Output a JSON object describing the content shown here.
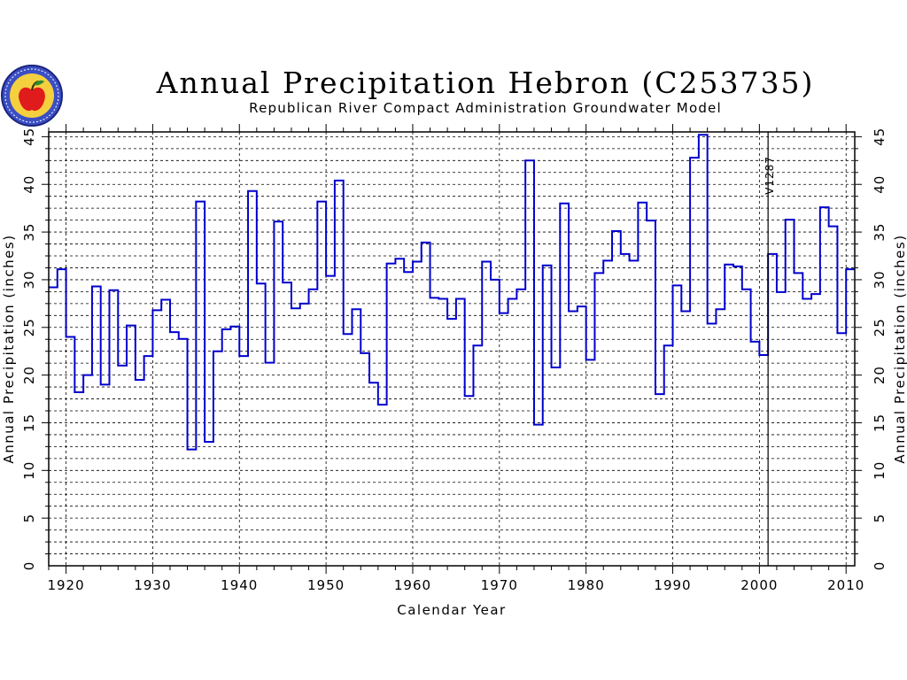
{
  "chart_data": {
    "type": "line",
    "style": "step",
    "title": "Annual Precipitation Hebron (C253735)",
    "subtitle": "Republican River Compact Administration Groundwater Model",
    "xlabel": "Calendar Year",
    "ylabel_left": "Annual Precipitation (inches)",
    "ylabel_right": "Annual Precipitation (inches)",
    "xlim": [
      1918,
      2011
    ],
    "ylim": [
      0,
      45.5
    ],
    "x_ticks": [
      1920,
      1930,
      1940,
      1950,
      1960,
      1970,
      1980,
      1990,
      2000,
      2010
    ],
    "y_ticks": [
      0,
      5,
      10,
      15,
      20,
      25,
      30,
      35,
      40,
      45
    ],
    "grid": true,
    "marker_line": {
      "year": 2001,
      "label": "V1287"
    },
    "series": [
      {
        "color": "#0000cc",
        "x": [
          1918,
          1919,
          1920,
          1921,
          1922,
          1923,
          1924,
          1925,
          1926,
          1927,
          1928,
          1929,
          1930,
          1931,
          1932,
          1933,
          1934,
          1935,
          1936,
          1937,
          1938,
          1939,
          1940,
          1941,
          1942,
          1943,
          1944,
          1945,
          1946,
          1947,
          1948,
          1949,
          1950,
          1951,
          1952,
          1953,
          1954,
          1955,
          1956,
          1957,
          1958,
          1959,
          1960,
          1961,
          1962,
          1963,
          1964,
          1965,
          1966,
          1967,
          1968,
          1969,
          1970,
          1971,
          1972,
          1973,
          1974,
          1975,
          1976,
          1977,
          1978,
          1979,
          1980,
          1981,
          1982,
          1983,
          1984,
          1985,
          1986,
          1987,
          1988,
          1989,
          1990,
          1991,
          1992,
          1993,
          1994,
          1995,
          1996,
          1997,
          1998,
          1999,
          2000,
          2001,
          2002,
          2003,
          2004,
          2005,
          2006,
          2007,
          2008,
          2009,
          2010
        ],
        "values": [
          29.2,
          31.1,
          24.0,
          18.2,
          20.0,
          29.3,
          19.0,
          28.9,
          21.0,
          25.2,
          19.5,
          22.0,
          26.8,
          27.9,
          24.5,
          23.8,
          12.2,
          38.2,
          13.0,
          22.5,
          24.8,
          25.1,
          22.0,
          39.3,
          29.6,
          21.3,
          36.1,
          29.7,
          27.0,
          27.5,
          29.0,
          38.2,
          30.4,
          40.4,
          24.3,
          26.9,
          22.3,
          19.2,
          16.9,
          31.7,
          32.2,
          30.8,
          31.9,
          33.9,
          28.1,
          28.0,
          25.9,
          28.0,
          17.8,
          23.1,
          31.9,
          30.0,
          26.5,
          28.0,
          29.0,
          42.5,
          14.8,
          31.5,
          20.8,
          38.0,
          26.7,
          27.2,
          21.6,
          30.7,
          32.0,
          35.1,
          32.7,
          32.0,
          38.1,
          36.2,
          18.0,
          23.1,
          29.4,
          26.7,
          42.8,
          45.2,
          25.4,
          26.9,
          31.6,
          31.4,
          29.0,
          23.5,
          22.1,
          32.7,
          28.7,
          36.3,
          30.7,
          28.0,
          28.5,
          37.6,
          35.6,
          24.4,
          31.1
        ]
      }
    ]
  },
  "logo": {
    "name": "seal-logo"
  }
}
